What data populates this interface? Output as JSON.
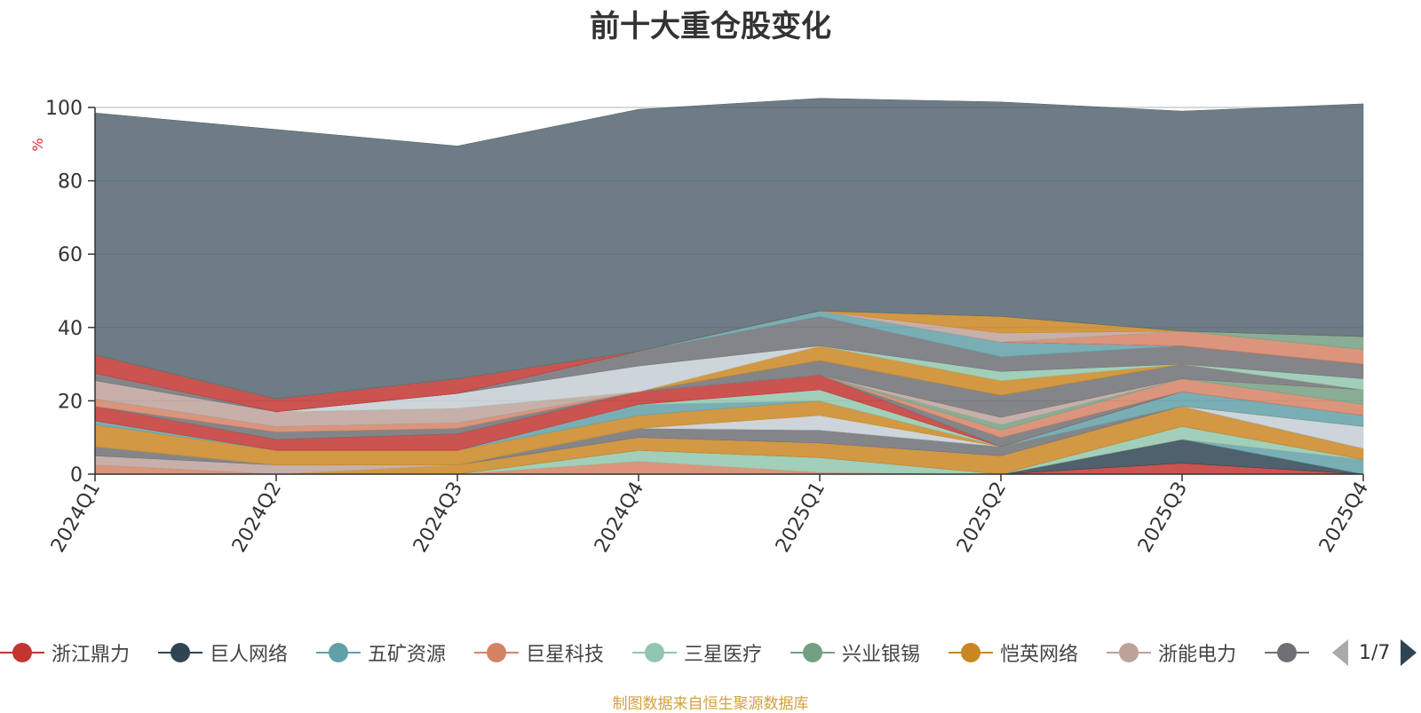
{
  "chart_data": {
    "type": "area",
    "title": "前十大重仓股变化",
    "ylabel": "%",
    "ylim": [
      0,
      100
    ],
    "yticks": [
      "0",
      "20",
      "40",
      "60",
      "80",
      "100"
    ],
    "categories": [
      "2024Q1",
      "2024Q2",
      "2024Q3",
      "2024Q4",
      "2025Q1",
      "2025Q2",
      "2025Q3",
      "2025Q4"
    ],
    "stacked": true,
    "grid": true,
    "legend_position": "bottom",
    "series": [
      {
        "name": "浙江鼎力",
        "color": "#c23531",
        "values": [
          0,
          0,
          0,
          0,
          0,
          0,
          3.0,
          0
        ]
      },
      {
        "name": "巨人网络",
        "color": "#2f4554",
        "values": [
          0,
          0,
          0,
          0,
          0,
          0,
          6.5,
          0
        ]
      },
      {
        "name": "五矿资源",
        "color": "#61a0a8",
        "values": [
          0,
          0,
          0,
          0,
          0,
          0,
          0,
          4.0
        ]
      },
      {
        "name": "巨星科技",
        "color": "#d48265",
        "values": [
          2.5,
          0,
          0,
          3.5,
          0.5,
          0,
          0,
          0
        ]
      },
      {
        "name": "三星医疗",
        "color": "#91c7ae",
        "values": [
          0,
          0,
          0,
          3.0,
          4.0,
          0,
          3.5,
          0
        ]
      },
      {
        "name": "兴业银锡",
        "color": "#749f83",
        "values": [
          0,
          0,
          0,
          0,
          0,
          0,
          0,
          0
        ]
      },
      {
        "name": "恺英网络",
        "color": "#ca8622",
        "values": [
          0,
          0,
          2.5,
          3.5,
          4.0,
          5.0,
          5.5,
          3.0
        ]
      },
      {
        "name": "浙能电力",
        "color": "#bda29a",
        "values": [
          2.5,
          2.5,
          0,
          0,
          0,
          0,
          0,
          0
        ]
      },
      {
        "name": "",
        "color": "#6e7074",
        "values": [
          2.5,
          0,
          0,
          2.5,
          3.5,
          2.5,
          0,
          0
        ]
      },
      {
        "name": "",
        "color": "#546570",
        "values": [
          0,
          0,
          0,
          0,
          0,
          0,
          0,
          0
        ]
      },
      {
        "name": "",
        "color": "#c4ccd3",
        "values": [
          0,
          0,
          0,
          0,
          4.0,
          0,
          0,
          6.0
        ]
      },
      {
        "name": "",
        "color": "#ca8622",
        "values": [
          6.0,
          4.0,
          4.0,
          3.5,
          4.0,
          0,
          0,
          0
        ]
      },
      {
        "name": "",
        "color": "#61a0a8",
        "values": [
          1.0,
          0,
          0,
          3.0,
          0,
          0,
          4.0,
          3.0
        ]
      },
      {
        "name": "",
        "color": "#91c7ae",
        "values": [
          0,
          0,
          0,
          0,
          3.0,
          0,
          0,
          0
        ]
      },
      {
        "name": "",
        "color": "#c23531",
        "values": [
          4.0,
          3.0,
          4.5,
          3.5,
          4.0,
          0,
          0,
          0
        ]
      },
      {
        "name": "",
        "color": "#6e7074",
        "values": [
          0,
          2.0,
          1.5,
          0,
          0,
          2.5,
          0,
          0
        ]
      },
      {
        "name": "",
        "color": "#d48265",
        "values": [
          2.0,
          1.5,
          1.5,
          0,
          0,
          2.0,
          3.5,
          3.0
        ]
      },
      {
        "name": "",
        "color": "#749f83",
        "values": [
          0,
          0,
          0,
          0,
          0,
          1.5,
          0,
          4.0
        ]
      },
      {
        "name": "",
        "color": "#bda29a",
        "values": [
          5.0,
          4.0,
          4.0,
          0,
          0,
          2.0,
          0,
          0
        ]
      },
      {
        "name": "",
        "color": "#6e7074",
        "values": [
          0,
          0,
          0,
          0,
          4.0,
          6.0,
          4.0,
          0
        ]
      },
      {
        "name": "",
        "color": "#ca8622",
        "values": [
          0,
          0,
          0,
          0,
          4.0,
          4.0,
          0,
          0
        ]
      },
      {
        "name": "",
        "color": "#91c7ae",
        "values": [
          0,
          0,
          0,
          0,
          0,
          2.5,
          0,
          3.0
        ]
      },
      {
        "name": "",
        "color": "#c4ccd3",
        "values": [
          0,
          0,
          4.0,
          7.0,
          0,
          0,
          0,
          0
        ]
      },
      {
        "name": "",
        "color": "#6e7074",
        "values": [
          2.0,
          0,
          0,
          4.0,
          8.0,
          4.0,
          5.0,
          4.0
        ]
      },
      {
        "name": "",
        "color": "#61a0a8",
        "values": [
          0,
          0,
          0,
          0,
          1.5,
          4.0,
          0,
          0
        ]
      },
      {
        "name": "",
        "color": "#c23531",
        "values": [
          5.0,
          3.5,
          4.0,
          0,
          0,
          0,
          0,
          0
        ]
      },
      {
        "name": "",
        "color": "#d48265",
        "values": [
          0,
          0,
          0,
          0,
          0,
          0,
          4.0,
          4.0
        ]
      },
      {
        "name": "",
        "color": "#749f83",
        "values": [
          0,
          0,
          0,
          0,
          0,
          0,
          0,
          3.5
        ]
      },
      {
        "name": "",
        "color": "#bda29a",
        "values": [
          0,
          0,
          0,
          0,
          0,
          2.5,
          0,
          0
        ]
      },
      {
        "name": "",
        "color": "#ca8622",
        "values": [
          0,
          0,
          0,
          0,
          0,
          4.5,
          0,
          0
        ]
      },
      {
        "name": "",
        "color": "#546570",
        "values": [
          66.0,
          73.5,
          63.5,
          66.0,
          58.0,
          58.5,
          60.0,
          63.5
        ]
      }
    ]
  },
  "legend": {
    "items": [
      {
        "label": "浙江鼎力",
        "color": "#c23531"
      },
      {
        "label": "巨人网络",
        "color": "#2f4554"
      },
      {
        "label": "五矿资源",
        "color": "#61a0a8"
      },
      {
        "label": "巨星科技",
        "color": "#d48265"
      },
      {
        "label": "三星医疗",
        "color": "#91c7ae"
      },
      {
        "label": "兴业银锡",
        "color": "#749f83"
      },
      {
        "label": "恺英网络",
        "color": "#ca8622"
      },
      {
        "label": "浙能电力",
        "color": "#bda29a"
      },
      {
        "label": "",
        "color": "#6e7074"
      }
    ],
    "page_text": "1/7"
  },
  "source_text": "制图数据来自恒生聚源数据库"
}
